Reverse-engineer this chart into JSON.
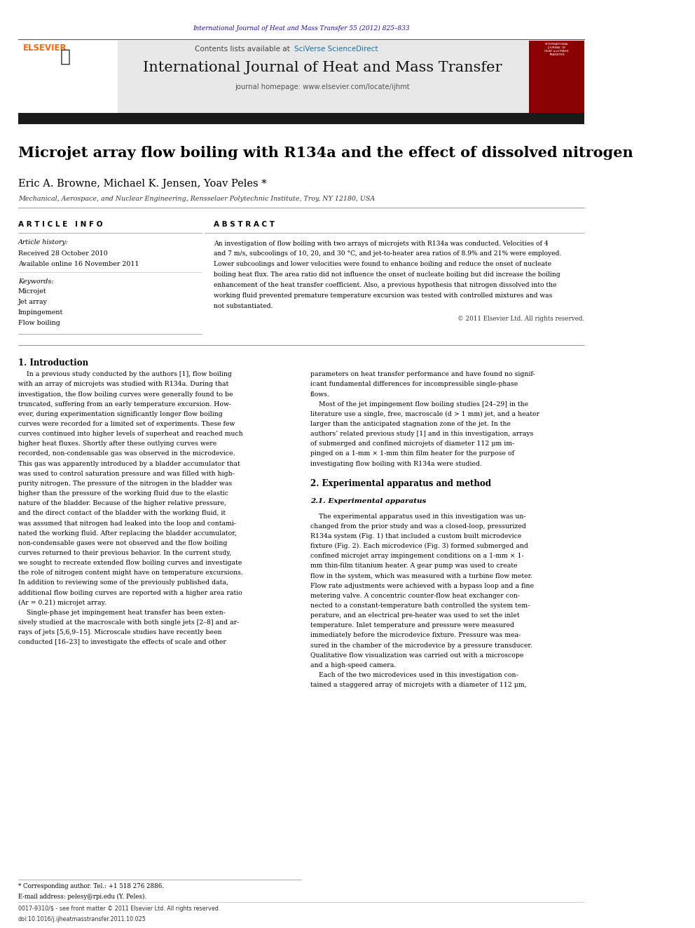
{
  "page_width": 9.92,
  "page_height": 13.23,
  "bg_color": "#ffffff",
  "top_url_text": "International Journal of Heat and Mass Transfer 55 (2012) 825–833",
  "top_url_color": "#1a0dab",
  "header_bg": "#e8e8e8",
  "header_journal_name": "International Journal of Heat and Mass Transfer",
  "header_contents": "Contents lists available at ",
  "header_sciverse": "SciVerse ScienceDirect",
  "header_homepage": "journal homepage: www.elsevier.com/locate/ijhmt",
  "elsevier_color": "#ff6600",
  "sciverse_color": "#1a6fa8",
  "dark_bar_color": "#1a1a1a",
  "article_title": "Microjet array flow boiling with R134a and the effect of dissolved nitrogen",
  "authors": "Eric A. Browne, Michael K. Jensen, Yoav Peles *",
  "affiliation": "Mechanical, Aerospace, and Nuclear Engineering, Rensselaer Polytechnic Institute, Troy, NY 12180, USA",
  "article_info_header": "A R T I C L E   I N F O",
  "abstract_header": "A B S T R A C T",
  "article_history_label": "Article history:",
  "received": "Received 28 October 2010",
  "available": "Available online 16 November 2011",
  "keywords_label": "Keywords:",
  "keywords": [
    "Microjet",
    "Jet array",
    "Impingement",
    "Flow boiling"
  ],
  "copyright": "© 2011 Elsevier Ltd. All rights reserved.",
  "intro_header": "1. Introduction",
  "exp_header": "2. Experimental apparatus and method",
  "exp_sub": "2.1. Experimental apparatus",
  "footnote_star": "* Corresponding author. Tel.: +1 518 276 2886.",
  "footnote_email": "E-mail address: pelesy@rpi.edu (Y. Peles).",
  "footnote_issn": "0017-9310/$ - see front matter © 2011 Elsevier Ltd. All rights reserved.",
  "footnote_doi": "doi:10.1016/j.ijheatmasstransfer.2011.10.025",
  "abstract_lines": [
    "An investigation of flow boiling with two arrays of microjets with R134a was conducted. Velocities of 4",
    "and 7 m/s, subcoolings of 10, 20, and 30 °C, and jet-to-heater area ratios of 8.9% and 21% were employed.",
    "Lower subcoolings and lower velocities were found to enhance boiling and reduce the onset of nucleate",
    "boiling heat flux. The area ratio did not influence the onset of nucleate boiling but did increase the boiling",
    "enhancement of the heat transfer coefficient. Also, a previous hypothesis that nitrogen dissolved into the",
    "working fluid prevented premature temperature excursion was tested with controlled mixtures and was",
    "not substantiated."
  ],
  "intro_left_lines": [
    "    In a previous study conducted by the authors [1], flow boiling",
    "with an array of microjets was studied with R134a. During that",
    "investigation, the flow boiling curves were generally found to be",
    "truncated, suffering from an early temperature excursion. How-",
    "ever, during experimentation significantly longer flow boiling",
    "curves were recorded for a limited set of experiments. These few",
    "curves continued into higher levels of superheat and reached much",
    "higher heat fluxes. Shortly after these outlying curves were",
    "recorded, non-condensable gas was observed in the microdevice.",
    "This gas was apparently introduced by a bladder accumulator that",
    "was used to control saturation pressure and was filled with high-",
    "purity nitrogen. The pressure of the nitrogen in the bladder was",
    "higher than the pressure of the working fluid due to the elastic",
    "nature of the bladder. Because of the higher relative pressure,",
    "and the direct contact of the bladder with the working fluid, it",
    "was assumed that nitrogen had leaked into the loop and contami-",
    "nated the working fluid. After replacing the bladder accumulator,",
    "non-condensable gases were not observed and the flow boiling",
    "curves returned to their previous behavior. In the current study,",
    "we sought to recreate extended flow boiling curves and investigate",
    "the role of nitrogen content might have on temperature excursions.",
    "In addition to reviewing some of the previously published data,",
    "additional flow boiling curves are reported with a higher area ratio",
    "(Ar = 0.21) microjet array.",
    "    Single-phase jet impingement heat transfer has been exten-",
    "sively studied at the macroscale with both single jets [2–8] and ar-",
    "rays of jets [5,6,9–15]. Microscale studies have recently been",
    "conducted [16–23] to investigate the effects of scale and other"
  ],
  "right_col_lines": [
    "parameters on heat transfer performance and have found no signif-",
    "icant fundamental differences for incompressible single-phase",
    "flows.",
    "    Most of the jet impingement flow boiling studies [24–29] in the",
    "literature use a single, free, macroscale (d > 1 mm) jet, and a heater",
    "larger than the anticipated stagnation zone of the jet. In the",
    "authors’ related previous study [1] and in this investigation, arrays",
    "of submerged and confined microjets of diameter 112 μm im-",
    "pinged on a 1-mm × 1-mm thin film heater for the purpose of",
    "investigating flow boiling with R134a were studied."
  ],
  "exp_lines": [
    "    The experimental apparatus used in this investigation was un-",
    "changed from the prior study and was a closed-loop, pressurized",
    "R134a system (Fig. 1) that included a custom built microdevice",
    "fixture (Fig. 2). Each microdevice (Fig. 3) formed submerged and",
    "confined microjet array impingement conditions on a 1-mm × 1-",
    "mm thin-film titanium heater. A gear pump was used to create",
    "flow in the system, which was measured with a turbine flow meter.",
    "Flow rate adjustments were achieved with a bypass loop and a fine",
    "metering valve. A concentric counter-flow heat exchanger con-",
    "nected to a constant-temperature bath controlled the system tem-",
    "perature, and an electrical pre-heater was used to set the inlet",
    "temperature. Inlet temperature and pressure were measured",
    "immediately before the microdevice fixture. Pressure was mea-",
    "sured in the chamber of the microdevice by a pressure transducer.",
    "Qualitative flow visualization was carried out with a microscope",
    "and a high-speed camera.",
    "    Each of the two microdevices used in this investigation con-",
    "tained a staggered array of microjets with a diameter of 112 μm,"
  ]
}
